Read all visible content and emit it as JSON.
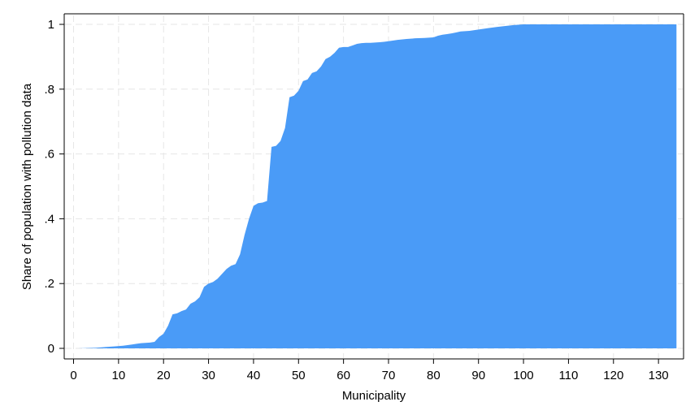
{
  "chart_data": {
    "type": "area",
    "title": "",
    "xlabel": "Municipality",
    "ylabel": "Share of population with pollution data",
    "xlim": [
      0,
      134
    ],
    "ylim": [
      0,
      1
    ],
    "xticks": [
      0,
      10,
      20,
      30,
      40,
      50,
      60,
      70,
      80,
      90,
      100,
      110,
      120,
      130
    ],
    "xtick_labels": [
      "0",
      "10",
      "20",
      "30",
      "40",
      "50",
      "60",
      "70",
      "80",
      "90",
      "100",
      "110",
      "120",
      "130"
    ],
    "yticks": [
      0,
      0.2,
      0.4,
      0.6,
      0.8,
      1
    ],
    "ytick_labels": [
      "0",
      ".2",
      ".4",
      ".6",
      ".8",
      "1"
    ],
    "grid": true,
    "fill_color": "#4a9bf7",
    "series": [
      {
        "x": [
          1,
          3,
          5,
          7,
          9,
          11,
          12,
          13,
          14,
          15,
          16,
          17,
          18,
          19,
          20,
          21,
          22,
          23,
          24,
          25,
          26,
          27,
          28,
          29,
          30,
          31,
          32,
          33,
          34,
          35,
          36,
          37,
          38,
          39,
          40,
          41,
          42,
          43,
          44,
          45,
          46,
          47,
          48,
          49,
          50,
          51,
          52,
          53,
          54,
          55,
          56,
          57,
          58,
          59,
          60,
          61,
          62,
          63,
          64,
          65,
          66,
          67,
          68,
          69,
          70,
          72,
          74,
          76,
          78,
          80,
          81,
          82,
          83,
          84,
          85,
          86,
          88,
          90,
          92,
          94,
          96,
          98,
          100,
          105,
          110,
          115,
          120,
          125,
          130,
          134
        ],
        "y": [
          0,
          0.001,
          0.002,
          0.004,
          0.006,
          0.008,
          0.01,
          0.012,
          0.014,
          0.016,
          0.017,
          0.018,
          0.02,
          0.035,
          0.045,
          0.07,
          0.105,
          0.108,
          0.115,
          0.12,
          0.138,
          0.145,
          0.158,
          0.19,
          0.2,
          0.205,
          0.215,
          0.23,
          0.245,
          0.255,
          0.26,
          0.29,
          0.35,
          0.4,
          0.44,
          0.448,
          0.45,
          0.455,
          0.622,
          0.625,
          0.64,
          0.68,
          0.775,
          0.78,
          0.795,
          0.825,
          0.83,
          0.85,
          0.855,
          0.87,
          0.893,
          0.9,
          0.912,
          0.928,
          0.93,
          0.93,
          0.935,
          0.94,
          0.942,
          0.943,
          0.943,
          0.944,
          0.945,
          0.946,
          0.948,
          0.952,
          0.955,
          0.957,
          0.958,
          0.96,
          0.965,
          0.968,
          0.97,
          0.972,
          0.975,
          0.978,
          0.98,
          0.984,
          0.988,
          0.992,
          0.995,
          0.998,
          1,
          1,
          1,
          1,
          1,
          1,
          1,
          1
        ]
      }
    ]
  }
}
